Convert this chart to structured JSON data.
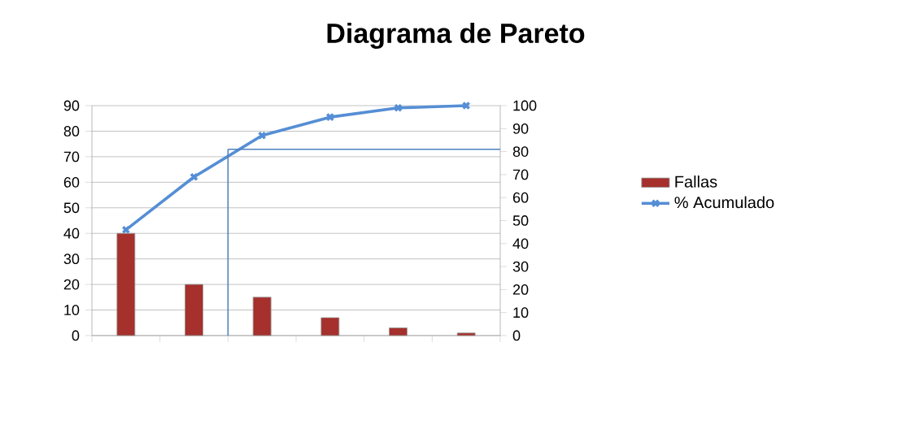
{
  "chart_data": {
    "type": "bar",
    "title": "Diagrama de Pareto",
    "categories": [
      null,
      null,
      null,
      null,
      null,
      null
    ],
    "series": [
      {
        "name": "Fallas",
        "color": "#a5302c",
        "values": [
          40,
          20,
          15,
          7,
          3,
          1
        ]
      },
      {
        "name": "% Acumulado",
        "type": "line",
        "axis": "y2",
        "color": "#558ed5",
        "values": [
          46,
          69,
          87,
          95,
          99,
          100
        ]
      }
    ],
    "ylim": [
      0,
      90
    ],
    "yticks": [
      0,
      10,
      20,
      30,
      40,
      50,
      60,
      70,
      80,
      90
    ],
    "y2lim": [
      0,
      100
    ],
    "y2ticks": [
      0,
      10,
      20,
      30,
      40,
      50,
      60,
      70,
      80,
      90,
      100
    ],
    "ref_lines": [
      {
        "axis": "y2",
        "value": 81,
        "color": "#4f81bd"
      }
    ],
    "grid": "y",
    "legend": "right",
    "marker": "cross"
  }
}
